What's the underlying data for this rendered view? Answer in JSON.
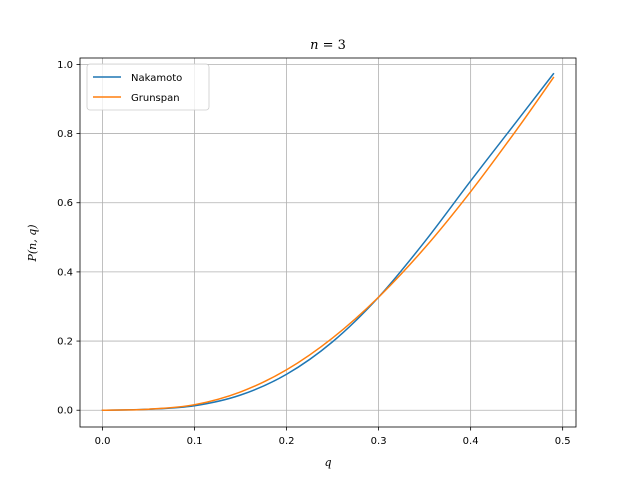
{
  "chart_data": {
    "type": "line",
    "title": "n = 3",
    "xlabel": "q",
    "ylabel": "P(n, q)",
    "xlim": [
      -0.0245,
      0.5145
    ],
    "ylim": [
      -0.0485,
      1.0185
    ],
    "xticks": [
      0.0,
      0.1,
      0.2,
      0.3,
      0.4,
      0.5
    ],
    "xtick_labels": [
      "0.0",
      "0.1",
      "0.2",
      "0.3",
      "0.4",
      "0.5"
    ],
    "yticks": [
      0.0,
      0.2,
      0.4,
      0.6,
      0.8,
      1.0
    ],
    "ytick_labels": [
      "0.0",
      "0.2",
      "0.4",
      "0.6",
      "0.8",
      "1.0"
    ],
    "grid": true,
    "legend_position": "upper-left",
    "x": [
      0.0,
      0.05,
      0.1,
      0.15,
      0.2,
      0.25,
      0.3,
      0.35,
      0.4,
      0.45,
      0.49
    ],
    "series": [
      {
        "name": "Nakamoto",
        "color": "#1f77b4",
        "values": [
          0.0,
          0.003,
          0.013,
          0.044,
          0.104,
          0.198,
          0.327,
          0.487,
          0.663,
          0.835,
          0.973
        ]
      },
      {
        "name": "Grunspan",
        "color": "#ff7f0e",
        "values": [
          0.0,
          0.003,
          0.016,
          0.053,
          0.117,
          0.209,
          0.327,
          0.469,
          0.632,
          0.811,
          0.962
        ]
      }
    ]
  }
}
